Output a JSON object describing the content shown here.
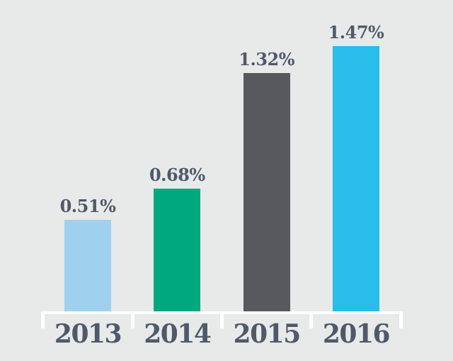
{
  "chart_data": {
    "type": "bar",
    "title": "",
    "xlabel": "",
    "ylabel": "",
    "categories": [
      "2013",
      "2014",
      "2015",
      "2016"
    ],
    "values": [
      0.51,
      0.68,
      1.32,
      1.47
    ],
    "value_labels": [
      "0.51%",
      "0.68%",
      "1.32%",
      "1.47%"
    ],
    "bar_colors": [
      "#9fd1ef",
      "#00a87d",
      "#58595c",
      "#29bde9"
    ],
    "ylim": [
      0,
      1.6
    ],
    "grid": false,
    "legend": false,
    "background_color": "#e8e9e9",
    "axis_color": "#ffffff",
    "label_color": "#4e5a6a"
  }
}
